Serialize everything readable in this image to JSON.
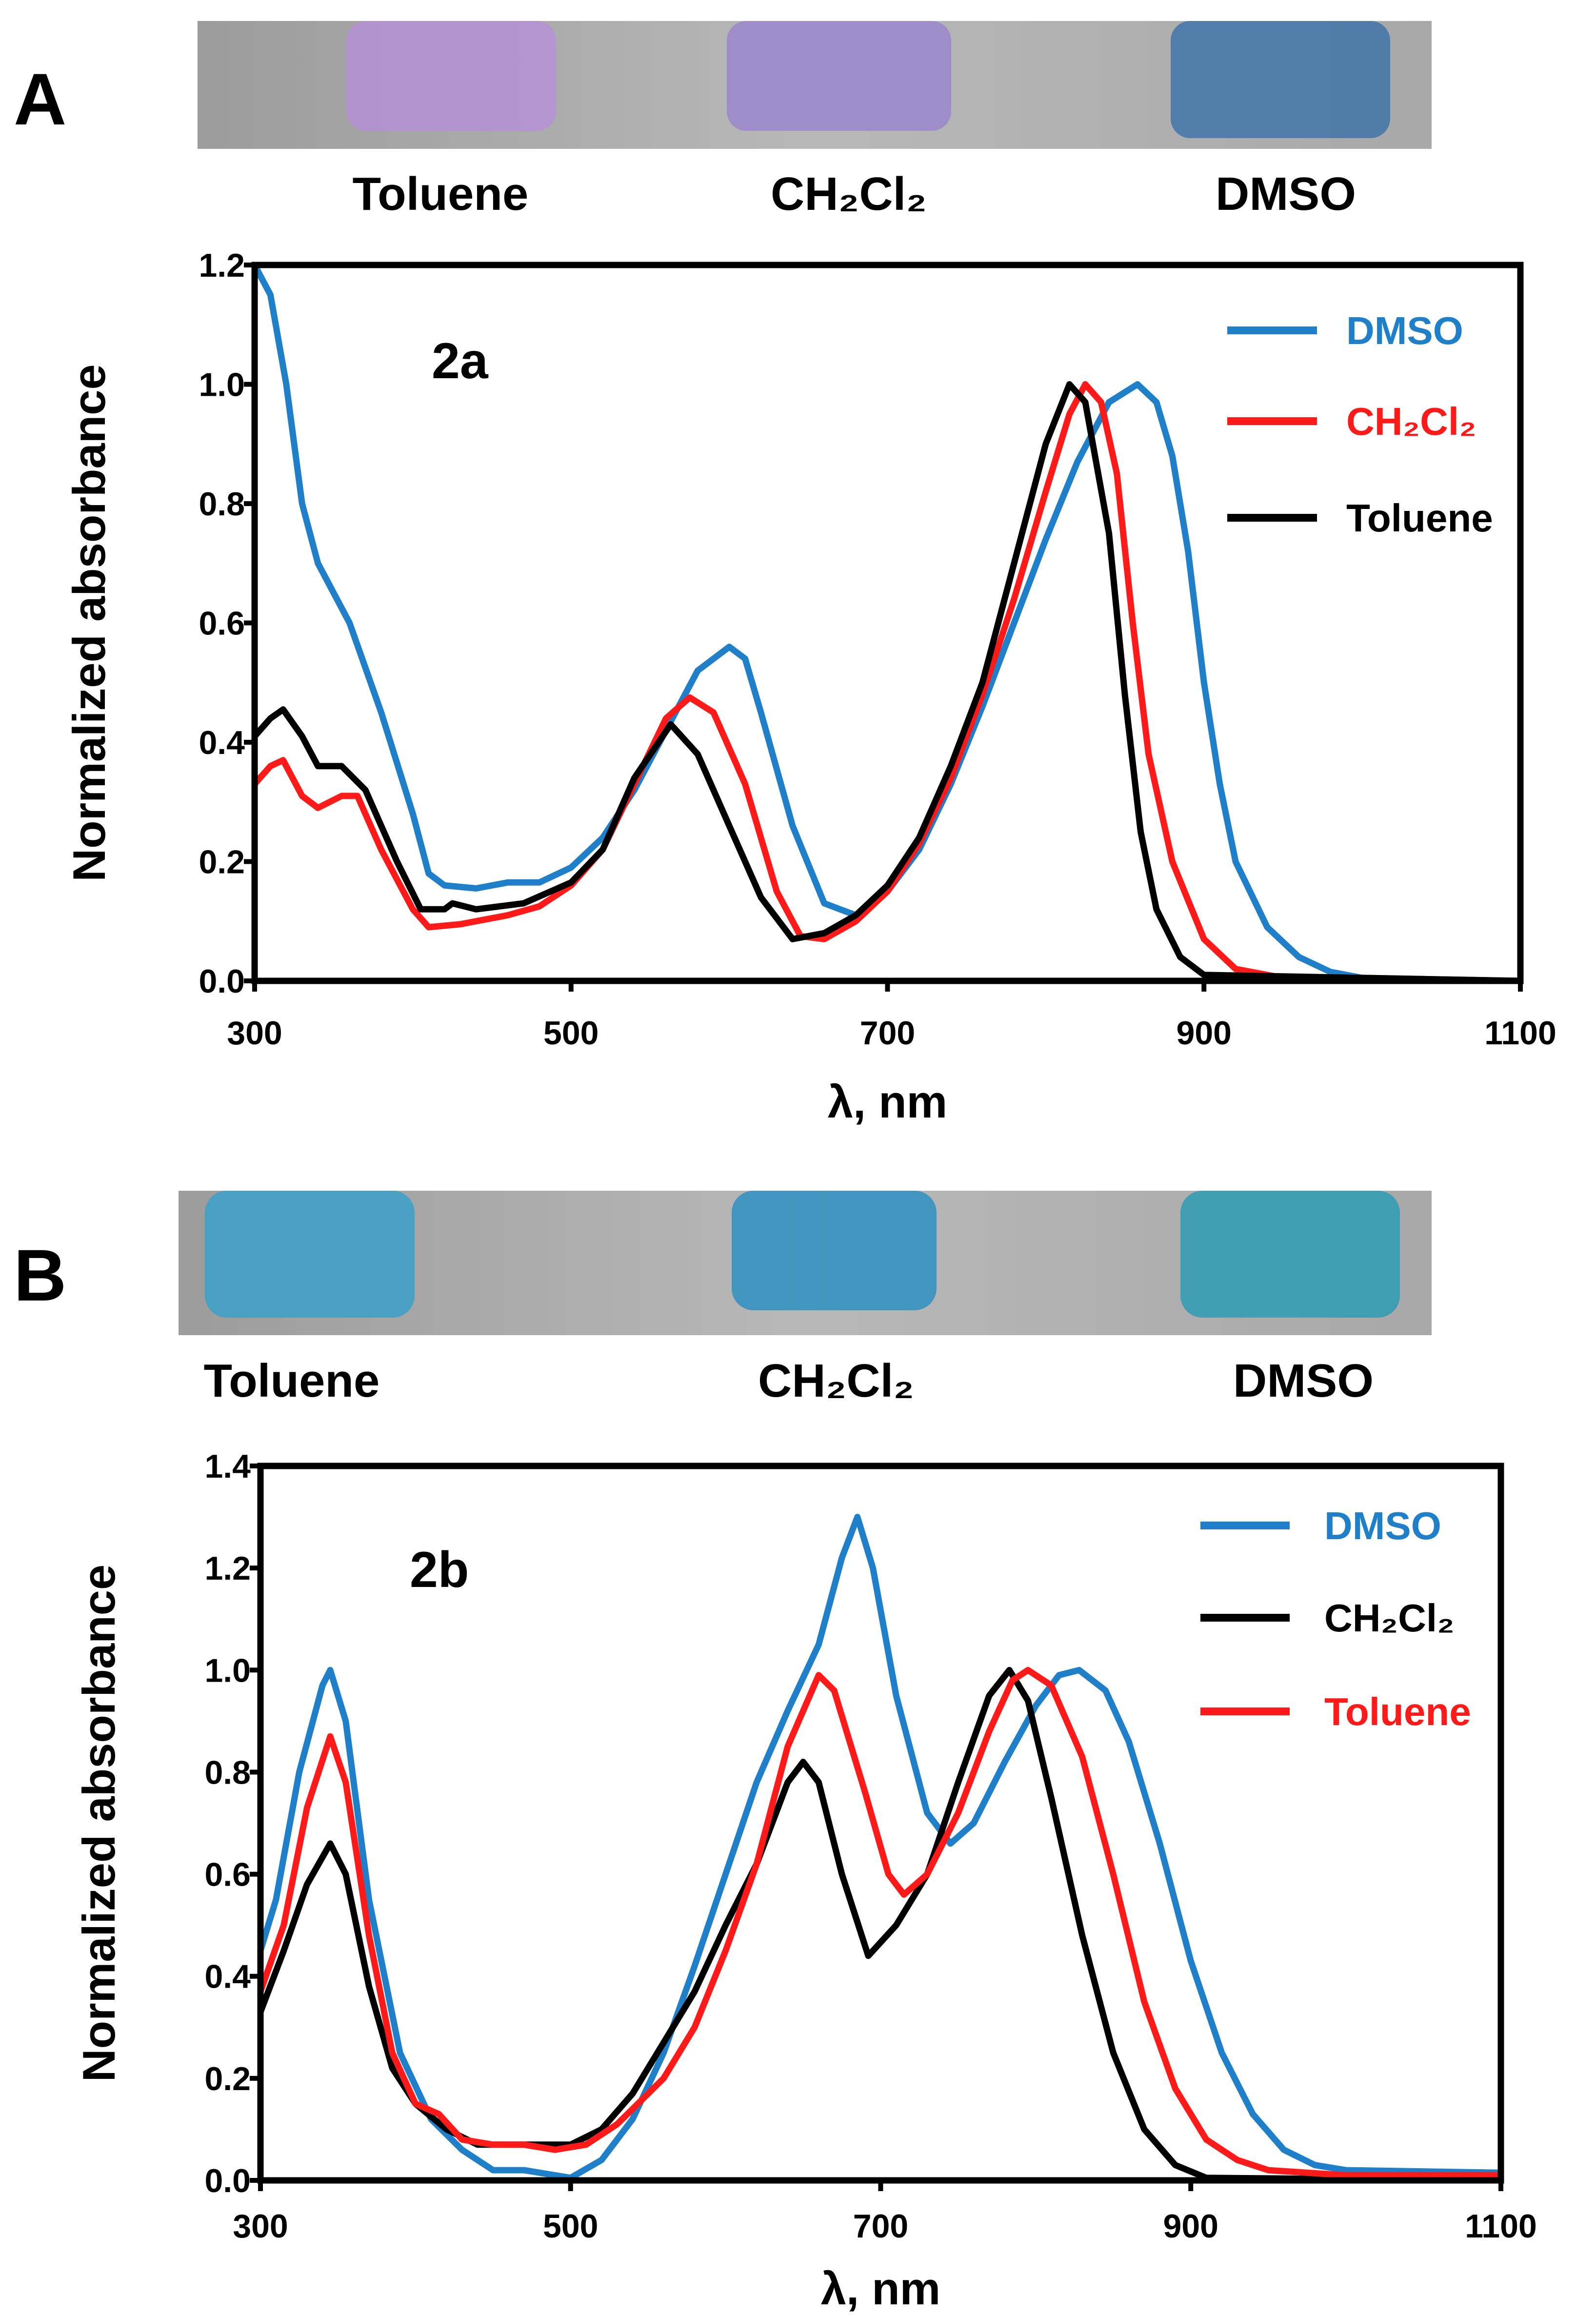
{
  "panels": [
    {
      "label": "A",
      "photo_labels": [
        "Toluene",
        "CH₂Cl₂",
        "DMSO"
      ],
      "photo_vial_colors": [
        "#b590d6",
        "#9a86cc",
        "#3f74a8"
      ]
    },
    {
      "label": "B",
      "photo_labels": [
        "Toluene",
        "CH₂Cl₂",
        "DMSO"
      ],
      "photo_vial_colors": [
        "#3aa0c8",
        "#2d8fc0",
        "#2f9cb4"
      ]
    }
  ],
  "chart_data": [
    {
      "type": "line",
      "compound_label": "2a",
      "xlabel": "λ, nm",
      "ylabel": "Normalized absorbance",
      "xlim": [
        300,
        1100
      ],
      "ylim": [
        0,
        1.2
      ],
      "xticks": [
        300,
        500,
        700,
        900,
        1100
      ],
      "xtick_labels": [
        "300",
        "500",
        "700",
        "900",
        "1100"
      ],
      "yticks": [
        0,
        0.2,
        0.4,
        0.6,
        0.8,
        1.0,
        1.2
      ],
      "ytick_labels": [
        "0.0",
        "0.2",
        "0.4",
        "0.6",
        "0.8",
        "1.0",
        "1.2"
      ],
      "legend_position": "top-right",
      "series": [
        {
          "name": "DMSO",
          "color": "#1f7fc8",
          "x": [
            300,
            310,
            320,
            330,
            340,
            360,
            380,
            400,
            410,
            420,
            440,
            460,
            480,
            500,
            520,
            540,
            560,
            580,
            600,
            610,
            620,
            640,
            660,
            680,
            700,
            720,
            740,
            760,
            780,
            800,
            820,
            840,
            858,
            870,
            880,
            890,
            900,
            910,
            920,
            940,
            960,
            980,
            1000,
            1100
          ],
          "y": [
            1.2,
            1.15,
            1.0,
            0.8,
            0.7,
            0.6,
            0.45,
            0.28,
            0.18,
            0.16,
            0.155,
            0.165,
            0.165,
            0.19,
            0.24,
            0.32,
            0.42,
            0.52,
            0.56,
            0.54,
            0.45,
            0.26,
            0.13,
            0.11,
            0.15,
            0.22,
            0.33,
            0.46,
            0.6,
            0.74,
            0.87,
            0.97,
            1.0,
            0.97,
            0.88,
            0.72,
            0.5,
            0.33,
            0.2,
            0.09,
            0.04,
            0.015,
            0.005,
            0
          ]
        },
        {
          "name": "CH₂Cl₂",
          "color": "#ff1a1a",
          "x": [
            300,
            310,
            318,
            330,
            340,
            355,
            365,
            380,
            400,
            410,
            430,
            460,
            480,
            500,
            520,
            540,
            560,
            575,
            590,
            610,
            630,
            645,
            660,
            680,
            700,
            720,
            740,
            760,
            780,
            800,
            815,
            825,
            835,
            845,
            855,
            865,
            880,
            900,
            920,
            950,
            1100
          ],
          "y": [
            0.33,
            0.36,
            0.37,
            0.31,
            0.29,
            0.31,
            0.31,
            0.22,
            0.12,
            0.09,
            0.095,
            0.11,
            0.125,
            0.16,
            0.22,
            0.33,
            0.44,
            0.475,
            0.45,
            0.33,
            0.15,
            0.075,
            0.07,
            0.1,
            0.15,
            0.23,
            0.34,
            0.48,
            0.64,
            0.82,
            0.95,
            1.0,
            0.97,
            0.85,
            0.6,
            0.38,
            0.2,
            0.07,
            0.02,
            0.005,
            0
          ]
        },
        {
          "name": "Toluene",
          "color": "#000000",
          "x": [
            300,
            310,
            318,
            330,
            340,
            355,
            370,
            390,
            405,
            420,
            425,
            440,
            470,
            500,
            520,
            540,
            563,
            580,
            600,
            620,
            640,
            660,
            680,
            700,
            720,
            740,
            760,
            780,
            800,
            815,
            825,
            840,
            850,
            860,
            870,
            885,
            900,
            1100
          ],
          "y": [
            0.41,
            0.44,
            0.455,
            0.41,
            0.36,
            0.36,
            0.32,
            0.2,
            0.12,
            0.12,
            0.13,
            0.12,
            0.13,
            0.165,
            0.22,
            0.34,
            0.43,
            0.38,
            0.26,
            0.14,
            0.07,
            0.08,
            0.11,
            0.16,
            0.24,
            0.36,
            0.5,
            0.7,
            0.9,
            1.0,
            0.97,
            0.75,
            0.48,
            0.25,
            0.12,
            0.04,
            0.01,
            0
          ]
        }
      ]
    },
    {
      "type": "line",
      "compound_label": "2b",
      "xlabel": "λ, nm",
      "ylabel": "Normalized absorbance",
      "xlim": [
        300,
        1100
      ],
      "ylim": [
        0,
        1.4
      ],
      "xticks": [
        300,
        500,
        700,
        900,
        1100
      ],
      "xtick_labels": [
        "300",
        "500",
        "700",
        "900",
        "1100"
      ],
      "yticks": [
        0,
        0.2,
        0.4,
        0.6,
        0.8,
        1.0,
        1.2,
        1.4
      ],
      "ytick_labels": [
        "0.0",
        "0.2",
        "0.4",
        "0.6",
        "0.8",
        "1.0",
        "1.2",
        "1.4"
      ],
      "legend_position": "top-right",
      "series": [
        {
          "name": "DMSO",
          "color": "#1f7fc8",
          "x": [
            300,
            310,
            325,
            340,
            345,
            355,
            370,
            390,
            410,
            430,
            450,
            470,
            490,
            500,
            520,
            540,
            560,
            580,
            600,
            620,
            640,
            660,
            675,
            685,
            695,
            710,
            730,
            745,
            760,
            780,
            800,
            815,
            828,
            845,
            860,
            880,
            900,
            920,
            940,
            960,
            980,
            1000,
            1100
          ],
          "y": [
            0.45,
            0.55,
            0.8,
            0.97,
            1.0,
            0.9,
            0.55,
            0.25,
            0.12,
            0.06,
            0.02,
            0.02,
            0.01,
            0.005,
            0.04,
            0.12,
            0.25,
            0.42,
            0.6,
            0.78,
            0.92,
            1.05,
            1.22,
            1.3,
            1.2,
            0.95,
            0.72,
            0.66,
            0.7,
            0.82,
            0.93,
            0.99,
            1.0,
            0.96,
            0.86,
            0.66,
            0.43,
            0.25,
            0.13,
            0.06,
            0.03,
            0.02,
            0.015
          ]
        },
        {
          "name": "CH₂Cl₂",
          "color": "#000000",
          "x": [
            300,
            315,
            330,
            345,
            355,
            370,
            385,
            400,
            420,
            440,
            470,
            500,
            520,
            540,
            560,
            580,
            600,
            620,
            640,
            650,
            660,
            675,
            692,
            710,
            730,
            750,
            770,
            783,
            795,
            810,
            830,
            850,
            870,
            890,
            910,
            1100
          ],
          "y": [
            0.33,
            0.45,
            0.58,
            0.66,
            0.6,
            0.38,
            0.22,
            0.15,
            0.1,
            0.07,
            0.07,
            0.07,
            0.1,
            0.17,
            0.27,
            0.37,
            0.5,
            0.62,
            0.78,
            0.82,
            0.78,
            0.6,
            0.44,
            0.5,
            0.6,
            0.78,
            0.95,
            1.0,
            0.94,
            0.75,
            0.48,
            0.25,
            0.1,
            0.03,
            0.005,
            0
          ]
        },
        {
          "name": "Toluene",
          "color": "#ff1a1a",
          "x": [
            300,
            315,
            330,
            345,
            355,
            370,
            385,
            400,
            415,
            430,
            450,
            470,
            490,
            510,
            530,
            560,
            580,
            600,
            620,
            640,
            660,
            670,
            690,
            705,
            715,
            730,
            750,
            770,
            785,
            795,
            810,
            830,
            850,
            870,
            890,
            910,
            930,
            950,
            1000,
            1100
          ],
          "y": [
            0.37,
            0.5,
            0.73,
            0.87,
            0.78,
            0.48,
            0.25,
            0.15,
            0.13,
            0.08,
            0.07,
            0.07,
            0.06,
            0.07,
            0.11,
            0.2,
            0.3,
            0.45,
            0.62,
            0.85,
            0.99,
            0.96,
            0.76,
            0.6,
            0.56,
            0.6,
            0.72,
            0.88,
            0.98,
            1.0,
            0.97,
            0.83,
            0.6,
            0.35,
            0.18,
            0.08,
            0.04,
            0.02,
            0.01,
            0.01
          ]
        }
      ]
    }
  ]
}
